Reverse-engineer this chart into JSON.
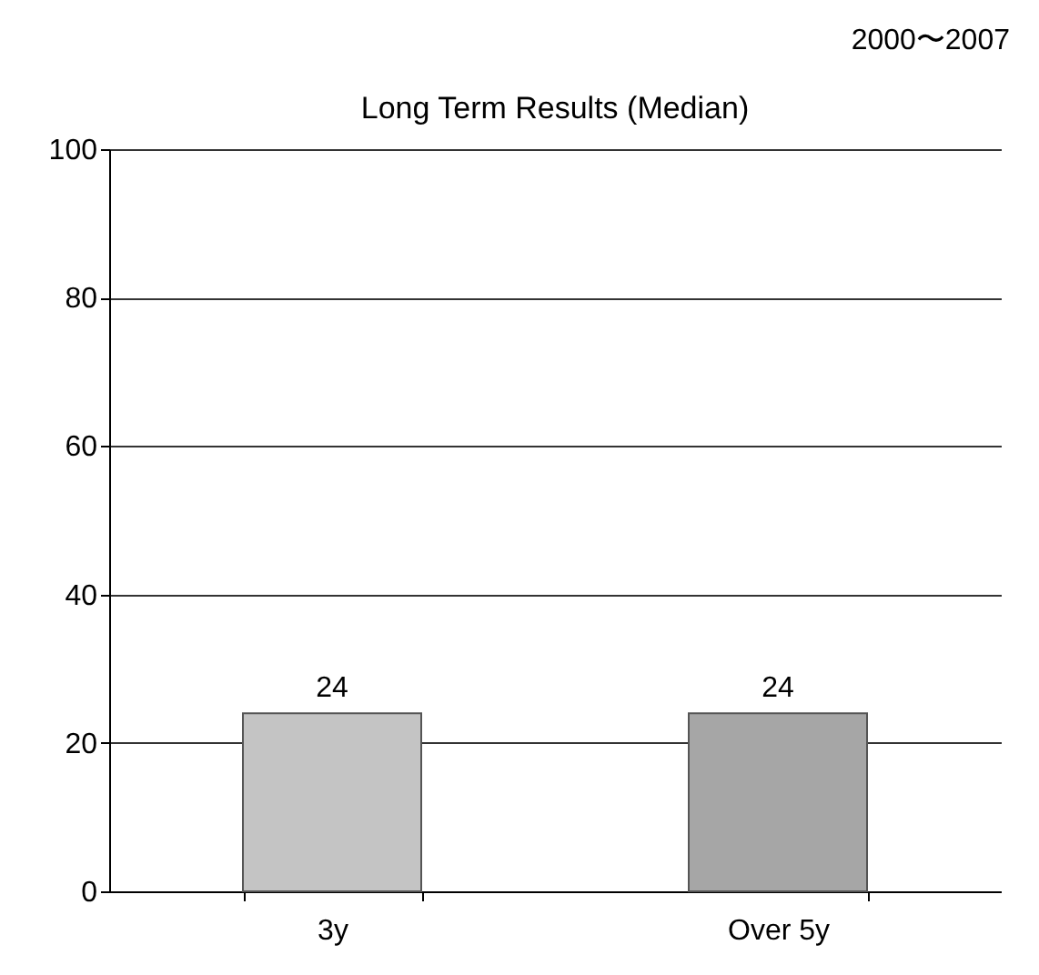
{
  "chart_data": {
    "type": "bar",
    "title": "Long Term Results (Median)",
    "annotations": [
      "2000〜2007"
    ],
    "categories": [
      "3y",
      "Over 5y"
    ],
    "values": [
      24,
      24
    ],
    "colors": [
      "#c4c4c4",
      "#a6a6a6"
    ],
    "ylim": [
      0,
      100
    ],
    "yticks": [
      0,
      20,
      40,
      60,
      80,
      100
    ],
    "grid": "y",
    "data_labels": true,
    "legend": false
  }
}
